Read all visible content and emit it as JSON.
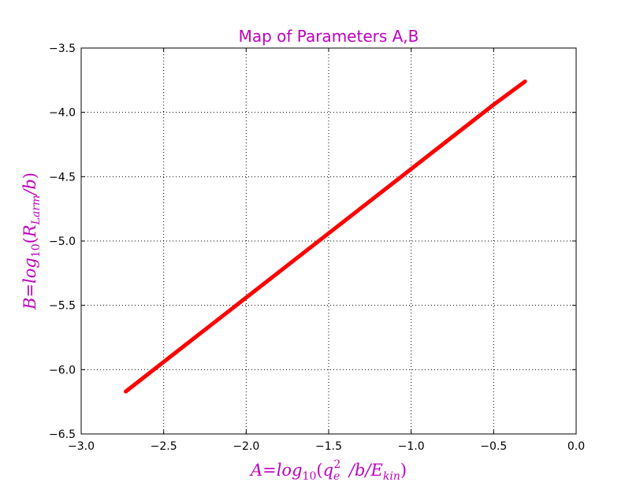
{
  "chart_data": {
    "type": "line",
    "title": "Map of Parameters A,B",
    "xlabel": "A=log10(qe2 /b/Ekin)",
    "ylabel": "B=log10(RLarm/b)",
    "xlim": [
      -3.0,
      0.0
    ],
    "ylim": [
      -6.5,
      -3.5
    ],
    "grid": true,
    "grid_style": "dotted",
    "colors": {
      "title": "#bf00bf",
      "axis_labels": "#bf00bf",
      "series": "#ff0000",
      "grid": "#000000"
    },
    "x_ticks": [
      -3.0,
      -2.5,
      -2.0,
      -1.5,
      -1.0,
      -0.5,
      0.0
    ],
    "x_tick_labels": [
      "−3.0",
      "−2.5",
      "−2.0",
      "−1.5",
      "−1.0",
      "−0.5",
      "0.0"
    ],
    "y_ticks": [
      -3.5,
      -4.0,
      -4.5,
      -5.0,
      -5.5,
      -6.0,
      -6.5
    ],
    "y_tick_labels": [
      "−3.5",
      "−4.0",
      "−4.5",
      "−5.0",
      "−5.5",
      "−6.0",
      "−6.5"
    ],
    "series": [
      {
        "color": "#ff0000",
        "x": [
          -2.73,
          -2.5,
          -2.0,
          -1.5,
          -1.0,
          -0.5,
          -0.31
        ],
        "y": [
          -6.17,
          -5.94,
          -5.44,
          -4.94,
          -4.44,
          -3.94,
          -3.76
        ]
      }
    ]
  }
}
